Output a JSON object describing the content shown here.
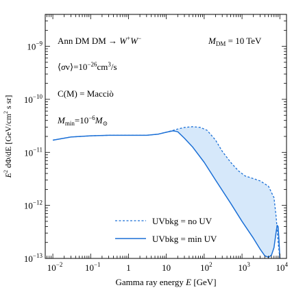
{
  "chart_data": {
    "type": "line",
    "xlabel": "Gamma ray energy E [GeV]",
    "ylabel": "E² dΦ/dE [GeV/cm² s sr]",
    "x_scale": "log",
    "y_scale": "log",
    "xlim": [
      0.0063,
      15000
    ],
    "ylim": [
      1e-13,
      4e-09
    ],
    "grid": false,
    "legend_position": "bottom-right",
    "x_ticks": [
      {
        "value": 0.01,
        "mant": "10",
        "exp": "−2"
      },
      {
        "value": 0.1,
        "mant": "10",
        "exp": "−1"
      },
      {
        "value": 1,
        "mant": "1",
        "exp": ""
      },
      {
        "value": 10,
        "mant": "10",
        "exp": ""
      },
      {
        "value": 100,
        "mant": "10",
        "exp": "2"
      },
      {
        "value": 1000,
        "mant": "10",
        "exp": "3"
      },
      {
        "value": 10000,
        "mant": "10",
        "exp": "4"
      }
    ],
    "y_ticks": [
      {
        "value": 1e-13,
        "mant": "10",
        "exp": "−13"
      },
      {
        "value": 1e-12,
        "mant": "10",
        "exp": "−12"
      },
      {
        "value": 1e-11,
        "mant": "10",
        "exp": "−11"
      },
      {
        "value": 1e-10,
        "mant": "10",
        "exp": "−10"
      },
      {
        "value": 1e-09,
        "mant": "10",
        "exp": "−9"
      }
    ],
    "annotations": {
      "channel": "Ann DM DM → W⁺W⁻",
      "cross_section": "⟨σv⟩=10⁻²⁶cm³/s",
      "concentration": "C(M) = Macciò",
      "min_mass": "M_min=10⁻⁶M_⊙",
      "dm_mass": "M_DM = 10 TeV"
    },
    "series": [
      {
        "name": "UVbkg = no UV",
        "style": "dashed",
        "color": "#1a6fd6",
        "x": [
          0.01,
          0.03,
          0.1,
          0.3,
          1,
          3,
          6,
          10,
          15,
          20,
          30,
          50,
          80,
          120,
          200,
          300,
          500,
          800,
          1200,
          2000,
          3000,
          5000,
          7000,
          8000,
          9000,
          10000
        ],
        "y": [
          1.7e-11,
          1.95e-11,
          2.05e-11,
          2.1e-11,
          2.1e-11,
          2.1e-11,
          2.2e-11,
          2.4e-11,
          2.6e-11,
          2.75e-11,
          2.95e-11,
          3.05e-11,
          2.95e-11,
          2.6e-11,
          1.7e-11,
          1.05e-11,
          6.5e-12,
          4.5e-12,
          3.6e-12,
          3.2e-12,
          2.9e-12,
          2.3e-12,
          1.4e-12,
          6e-13,
          2e-13,
          1e-13
        ]
      },
      {
        "name": "UVbkg = min UV",
        "style": "solid",
        "color": "#1a6fd6",
        "x": [
          0.01,
          0.03,
          0.1,
          0.3,
          1,
          3,
          6,
          10,
          15,
          20,
          30,
          50,
          100,
          200,
          500,
          1000,
          2000,
          3000,
          4000,
          5000,
          6000,
          7000,
          8000,
          8500,
          9000,
          9500,
          10000
        ],
        "y": [
          1.7e-11,
          1.95e-11,
          2.05e-11,
          2.1e-11,
          2.1e-11,
          2.1e-11,
          2.2e-11,
          2.4e-11,
          2.55e-11,
          2.45e-11,
          1.85e-11,
          1.25e-11,
          6.5e-12,
          3e-12,
          1.1e-12,
          5e-13,
          2.4e-13,
          1.5e-13,
          1.12e-13,
          1.05e-13,
          1.15e-13,
          1.6e-13,
          3.2e-13,
          4.2e-13,
          4e-13,
          2.2e-13,
          1e-13
        ]
      }
    ]
  }
}
